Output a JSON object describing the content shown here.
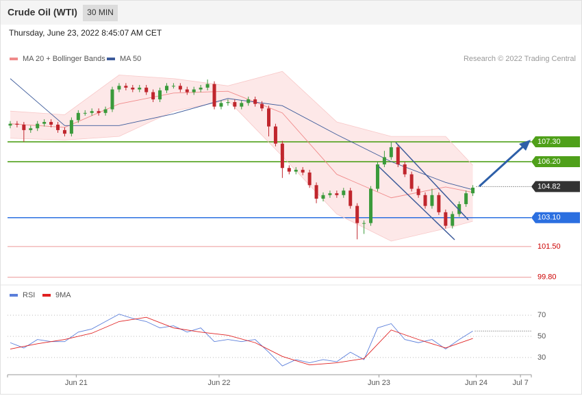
{
  "chart_data": {
    "type": "candlestick",
    "title": "Crude Oil (WTI)",
    "interval": "30 MIN",
    "subtitle": "Thursday, June 23, 2022 8:45:07 AM CET",
    "credit": "Research © 2022 Trading Central",
    "up_color": "#3a9a3a",
    "down_color": "#c0262d",
    "open": [
      108.2,
      108.3,
      108.25,
      107.95,
      108.05,
      108.3,
      108.4,
      108.25,
      107.95,
      107.75,
      108.5,
      108.9,
      108.9,
      109.0,
      108.9,
      109.1,
      110.2,
      110.4,
      110.3,
      110.2,
      110.3,
      110.05,
      109.65,
      110.15,
      110.4,
      110.4,
      110.2,
      110.05,
      110.2,
      110.3,
      110.5,
      109.25,
      109.45,
      109.5,
      109.25,
      109.45,
      109.65,
      109.4,
      109.15,
      108.15,
      107.2,
      105.85,
      105.65,
      105.75,
      105.6,
      104.9,
      104.15,
      104.35,
      104.45,
      104.35,
      104.6,
      103.75,
      102.8,
      102.8,
      104.7,
      106.05,
      106.45,
      107.0,
      106.05,
      105.5,
      104.7,
      104.35,
      103.75,
      104.35,
      103.4,
      102.65,
      103.3,
      103.85,
      104.45
    ],
    "high": [
      108.45,
      108.45,
      108.4,
      108.2,
      108.45,
      108.55,
      108.55,
      108.4,
      108.1,
      108.65,
      109.05,
      109.05,
      109.15,
      109.15,
      109.25,
      110.35,
      110.55,
      110.55,
      110.45,
      110.45,
      110.45,
      110.2,
      110.3,
      110.55,
      110.55,
      110.55,
      110.35,
      110.35,
      110.45,
      110.75,
      110.65,
      109.6,
      109.65,
      109.65,
      109.6,
      109.8,
      109.8,
      109.55,
      109.3,
      108.3,
      107.35,
      106.0,
      105.9,
      105.9,
      105.75,
      105.05,
      104.5,
      104.6,
      104.6,
      104.75,
      104.75,
      103.9,
      102.95,
      104.85,
      106.2,
      106.8,
      107.3,
      107.15,
      106.2,
      105.65,
      104.85,
      104.5,
      104.7,
      104.5,
      103.55,
      103.45,
      104.0,
      104.6,
      104.9
    ],
    "low": [
      108.05,
      108.1,
      107.3,
      107.8,
      107.9,
      108.15,
      108.1,
      107.8,
      107.6,
      107.6,
      108.35,
      108.75,
      108.75,
      108.75,
      108.75,
      108.95,
      110.05,
      110.15,
      110.05,
      110.05,
      109.9,
      109.5,
      109.5,
      110.0,
      110.25,
      110.05,
      109.9,
      109.9,
      110.05,
      110.15,
      109.1,
      109.1,
      109.3,
      109.1,
      109.1,
      109.3,
      109.25,
      109.0,
      107.6,
      107.05,
      105.3,
      105.5,
      105.5,
      105.45,
      104.75,
      103.9,
      104.0,
      104.2,
      104.2,
      104.2,
      103.6,
      101.9,
      102.2,
      102.65,
      104.55,
      105.9,
      106.3,
      105.9,
      105.35,
      104.55,
      104.2,
      103.6,
      103.6,
      103.25,
      102.5,
      102.5,
      103.15,
      103.7,
      104.3
    ],
    "close": [
      108.3,
      108.25,
      107.95,
      108.05,
      108.3,
      108.4,
      108.25,
      107.95,
      107.75,
      108.5,
      108.9,
      108.9,
      109.0,
      108.9,
      109.1,
      110.2,
      110.4,
      110.3,
      110.2,
      110.3,
      110.05,
      109.65,
      110.15,
      110.4,
      110.4,
      110.2,
      110.05,
      110.2,
      110.3,
      110.5,
      109.25,
      109.45,
      109.5,
      109.25,
      109.45,
      109.65,
      109.4,
      109.15,
      108.15,
      107.2,
      105.85,
      105.65,
      105.75,
      105.6,
      104.9,
      104.15,
      104.35,
      104.45,
      104.35,
      104.6,
      103.75,
      102.8,
      102.8,
      104.7,
      106.05,
      106.45,
      107.0,
      106.05,
      105.5,
      104.7,
      104.35,
      103.75,
      104.35,
      103.4,
      102.65,
      103.3,
      103.85,
      104.45,
      104.76
    ],
    "xlim": [
      -0.4,
      76.6
    ],
    "xticks": [
      {
        "value": 9.7,
        "label": "Jun 21"
      },
      {
        "value": 30.7,
        "label": "Jun 22"
      },
      {
        "value": 54.2,
        "label": "Jun 23"
      },
      {
        "value": 68.5,
        "label": "Jun 24"
      },
      {
        "value": 75,
        "label": "Jul 7"
      }
    ],
    "ylim": [
      99.6,
      111.36
    ],
    "series": [
      {
        "name": "MA 20 + Bollinger Bands",
        "color": "#f08a8a",
        "x": [
          0,
          8,
          16,
          24,
          32,
          40,
          48,
          56,
          64,
          68
        ],
        "values": [
          108.3,
          108.1,
          109.4,
          110.0,
          110.1,
          108.9,
          105.5,
          104.2,
          104.8,
          104.5
        ]
      },
      {
        "name": "MA 50",
        "color": "#3c5a9a",
        "x": [
          0,
          8,
          16,
          24,
          32,
          40,
          48,
          56,
          64,
          68
        ],
        "values": [
          110.8,
          108.2,
          108.2,
          108.85,
          109.7,
          109.3,
          107.7,
          106.2,
          105.05,
          104.65
        ]
      }
    ],
    "bands": {
      "color": "#fde2e2",
      "x": [
        0,
        8,
        16,
        24,
        32,
        40,
        48,
        56,
        64,
        68
      ],
      "upper": [
        109.0,
        108.8,
        111.0,
        110.8,
        110.4,
        111.2,
        108.4,
        107.6,
        107.6,
        106.0
      ],
      "lower": [
        107.5,
        107.4,
        107.6,
        109.0,
        109.6,
        106.5,
        103.3,
        101.8,
        102.5,
        102.9
      ]
    },
    "levels": [
      {
        "value": 107.3,
        "label": "107.30",
        "color": "#4fa01a",
        "filled": true
      },
      {
        "value": 106.2,
        "label": "106.20",
        "color": "#4fa01a",
        "filled": true
      },
      {
        "value": 104.82,
        "label": "104.82",
        "color": "#333333",
        "filled": true,
        "dotted": true
      },
      {
        "value": 103.1,
        "label": "103.10",
        "color": "#2b6fe0",
        "filled": true
      },
      {
        "value": 101.5,
        "label": "101.50",
        "color": "#e05050",
        "filled": false
      },
      {
        "value": 99.8,
        "label": "99.80",
        "color": "#e05050",
        "filled": false
      }
    ],
    "rsi": {
      "ylim": [
        15,
        96
      ],
      "yticks": [
        70,
        50,
        30
      ],
      "series": [
        {
          "name": "RSI",
          "color": "#5b7fdb",
          "x": [
            0,
            2,
            4,
            6,
            8,
            10,
            12,
            14,
            16,
            18,
            20,
            22,
            24,
            26,
            28,
            30,
            32,
            34,
            36,
            38,
            40,
            42,
            44,
            46,
            48,
            50,
            52,
            54,
            56,
            58,
            60,
            62,
            64,
            66,
            68
          ],
          "values": [
            44,
            39,
            47,
            45,
            45,
            54,
            57,
            64,
            71,
            67,
            64,
            58,
            60,
            54,
            58,
            45,
            47,
            45,
            47,
            35,
            22,
            28,
            25,
            28,
            26,
            35,
            28,
            58,
            62,
            47,
            44,
            47,
            38,
            47,
            55
          ]
        },
        {
          "name": "9MA",
          "color": "#e02020",
          "x": [
            0,
            4,
            8,
            12,
            16,
            20,
            24,
            28,
            32,
            36,
            40,
            44,
            48,
            52,
            56,
            60,
            64,
            68
          ],
          "values": [
            38,
            43,
            47,
            53,
            64,
            68,
            58,
            54,
            51,
            44,
            31,
            23,
            25,
            29,
            56,
            47,
            39,
            48
          ]
        }
      ]
    }
  }
}
